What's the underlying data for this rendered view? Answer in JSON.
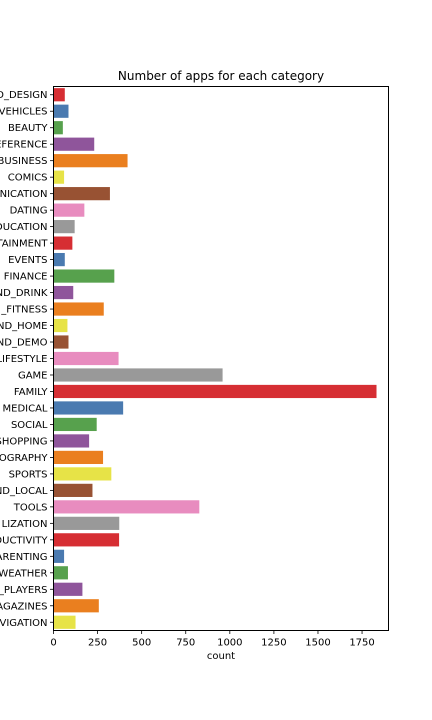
{
  "chart_data": {
    "type": "bar",
    "orientation": "horizontal",
    "title": "Number of apps for each category",
    "xlabel": "count",
    "ylabel": "",
    "xlim": [
      0,
      1900
    ],
    "xticks": [
      "0",
      "250",
      "500",
      "750",
      "1000",
      "1250",
      "1500",
      "1750"
    ],
    "grid": false,
    "legend": false,
    "categories": [
      "D_DESIGN",
      "VEHICLES",
      "BEAUTY",
      "EFERENCE",
      "BUSINESS",
      "COMICS",
      "NICATION",
      "DATING",
      "DUCATION",
      "TAINMENT",
      "EVENTS",
      "FINANCE",
      "ND_DRINK",
      "_FITNESS",
      "ND_HOME",
      "ND_DEMO",
      "LIFESTYLE",
      "GAME",
      "FAMILY",
      "MEDICAL",
      "SOCIAL",
      "SHOPPING",
      "OGRAPHY",
      "SPORTS",
      "ND_LOCAL",
      "TOOLS",
      "LIZATION",
      "DUCTIVITY",
      "ARENTING",
      "WEATHER",
      "_PLAYERS",
      "AGAZINES",
      "VIGATION"
    ],
    "values": [
      64,
      85,
      53,
      231,
      420,
      60,
      320,
      175,
      120,
      107,
      64,
      345,
      112,
      285,
      79,
      85,
      369,
      959,
      1832,
      395,
      245,
      202,
      281,
      328,
      221,
      827,
      373,
      372,
      60,
      82,
      164,
      257,
      125
    ],
    "colors": [
      "#d62e33",
      "#4a7ab0",
      "#57a14d",
      "#8f559b",
      "#ea7f1f",
      "#e7e347",
      "#985233",
      "#e88cbf",
      "#999999"
    ]
  }
}
